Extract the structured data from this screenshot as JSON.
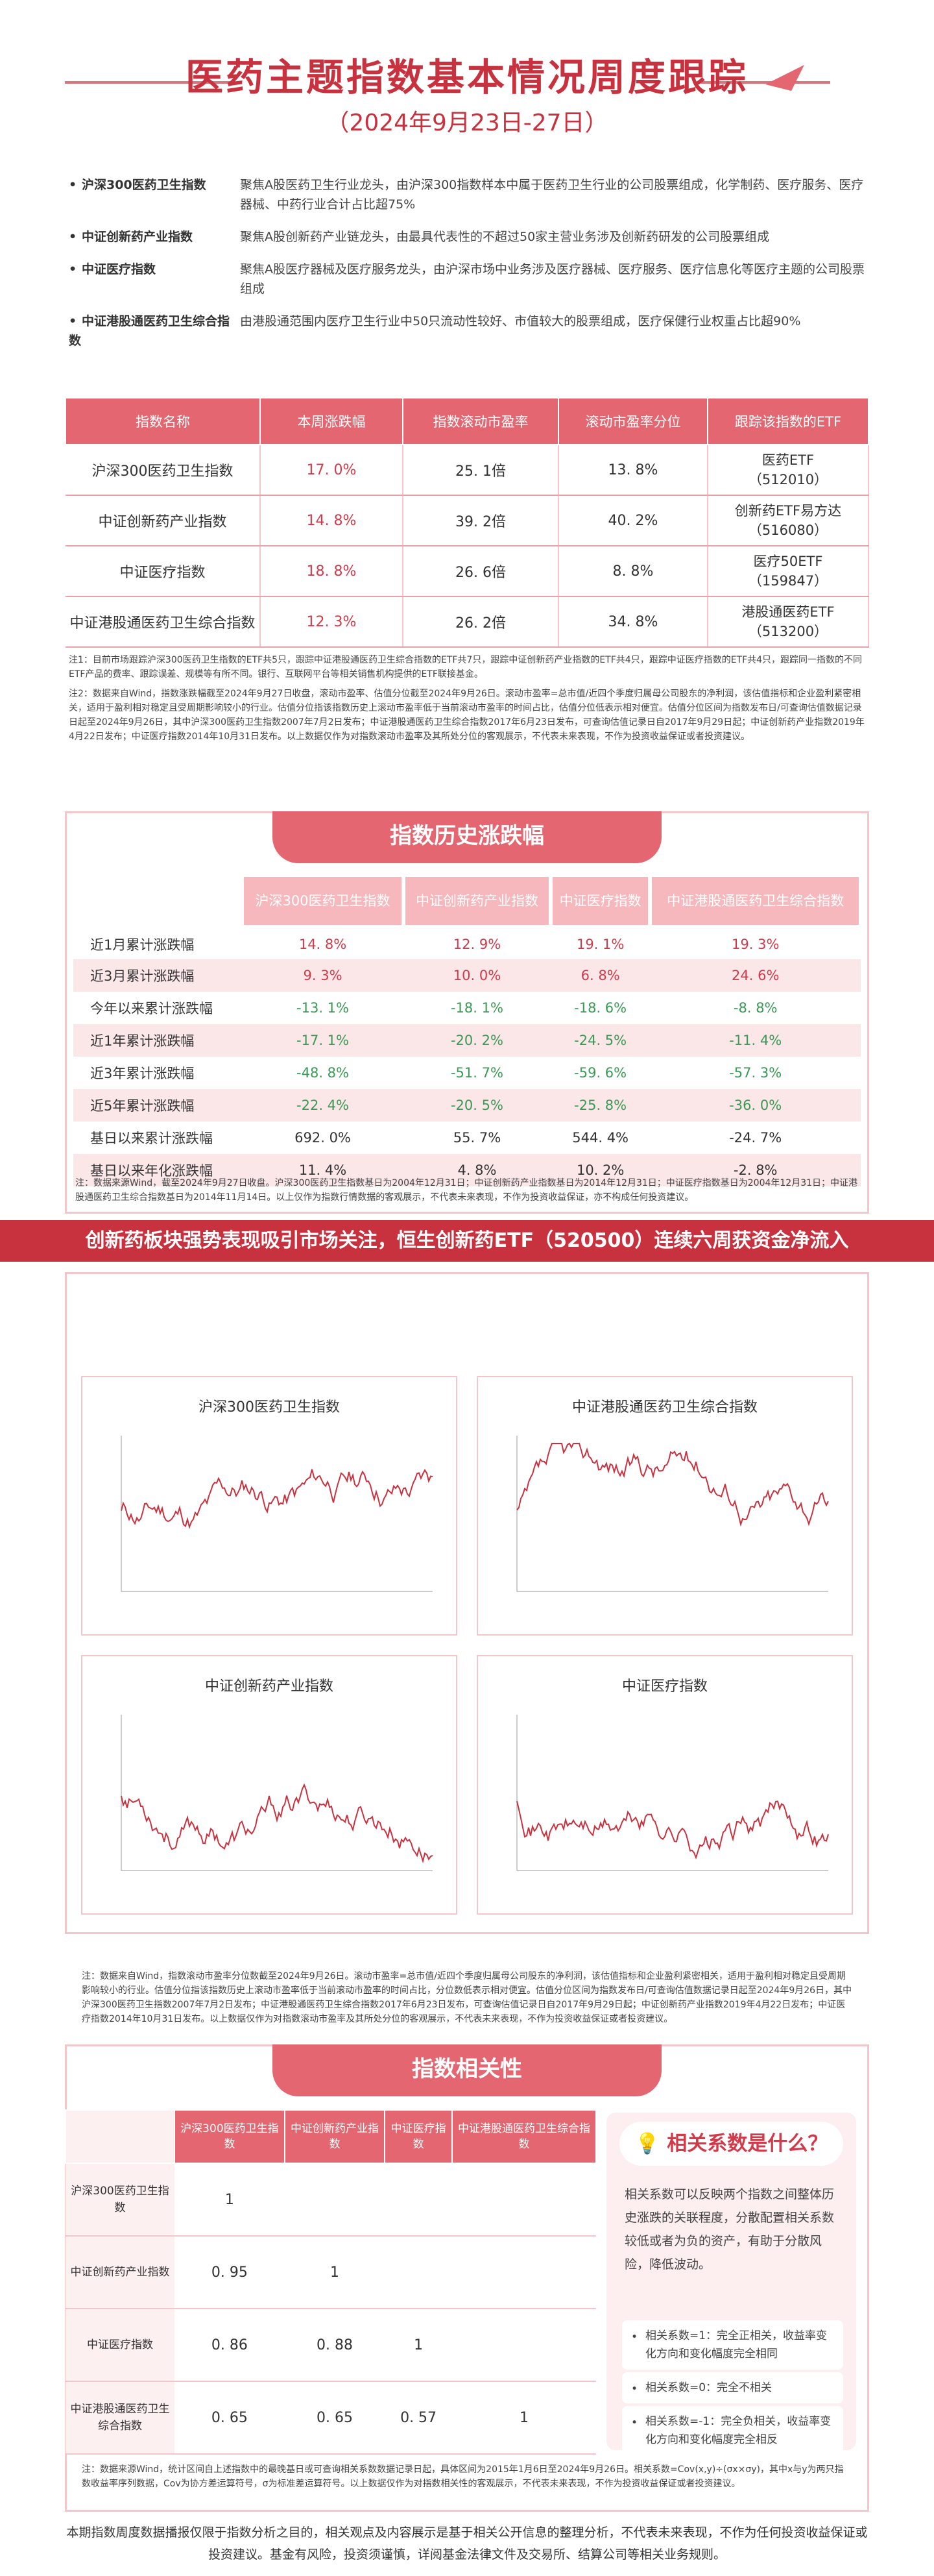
{
  "header": {
    "title": "医药主题指数基本情况周度跟踪",
    "subtitle": "（2024年9月23日-27日）"
  },
  "intro": [
    {
      "name": "沪深300医药卫生指数",
      "desc": "聚焦A股医药卫生行业龙头，由沪深300指数样本中属于医药卫生行业的公司股票组成，化学制药、医疗服务、医疗器械、中药行业合计占比超75%"
    },
    {
      "name": "中证创新药产业指数",
      "desc": "聚焦A股创新药产业链龙头，由最具代表性的不超过50家主营业务涉及创新药研发的公司股票组成"
    },
    {
      "name": "中证医疗指数",
      "desc": "聚焦A股医疗器械及医疗服务龙头，由沪深市场中业务涉及医疗器械、医疗服务、医疗信息化等医疗主题的公司股票组成"
    },
    {
      "name": "中证港股通医药卫生综合指数",
      "desc": "由港股通范围内医疗卫生行业中50只流动性较好、市值较大的股票组成，医疗保健行业权重占比超90%"
    }
  ],
  "table1": {
    "headers": [
      "指数名称",
      "本周涨跌幅",
      "指数滚动市盈率",
      "滚动市盈率分位",
      "跟踪该指数的ETF"
    ],
    "rows": [
      {
        "name": "沪深300医药卫生指数",
        "chg": "17. 0%",
        "pe": "25. 1倍",
        "pct": "13. 8%",
        "etf": "医药ETF",
        "code": "（512010）"
      },
      {
        "name": "中证创新药产业指数",
        "chg": "14. 8%",
        "pe": "39. 2倍",
        "pct": "40. 2%",
        "etf": "创新药ETF易方达",
        "code": "（516080）"
      },
      {
        "name": "中证医疗指数",
        "chg": "18. 8%",
        "pe": "26. 6倍",
        "pct": "8. 8%",
        "etf": "医疗50ETF",
        "code": "（159847）"
      },
      {
        "name": "中证港股通医药卫生综合指数",
        "chg": "12. 3%",
        "pe": "26. 2倍",
        "pct": "34. 8%",
        "etf": "港股通医药ETF",
        "code": "（513200）"
      }
    ],
    "note1": "注1：目前市场跟踪沪深300医药卫生指数的ETF共5只，跟踪中证港股通医药卫生综合指数的ETF共7只，跟踪中证创新药产业指数的ETF共4只，跟踪中证医疗指数的ETF共4只，跟踪同一指数的不同ETF产品的费率、跟踪误差、规模等有所不同。银行、互联网平台等相关销售机构提供的ETF联接基金。",
    "note2": "注2：数据来自Wind，指数涨跌幅截至2024年9月27日收盘，滚动市盈率、估值分位截至2024年9月26日。滚动市盈率=总市值/近四个季度归属母公司股东的净利润，该估值指标和企业盈利紧密相关，适用于盈利相对稳定且受周期影响较小的行业。估值分位指该指数历史上滚动市盈率低于当前滚动市盈率的时间占比，估值分位低表示相对便宜。估值分位区间为指数发布日/可查询估值数据记录日起至2024年9月26日，其中沪深300医药卫生指数2007年7月2日发布；中证港股通医药卫生综合指数2017年6月23日发布，可查询估值记录日自2017年9月29日起；中证创新药产业指数2019年4月22日发布；中证医疗指数2014年10月31日发布。以上数据仅作为对指数滚动市盈率及其所处分位的客观展示，不代表未来表现，不作为投资收益保证或者投资建议。"
  },
  "history": {
    "title": "指数历史涨跌幅",
    "headers": [
      "沪深300医药卫生指数",
      "中证创新药产业指数",
      "中证医疗指数",
      "中证港股通医药卫生综合指数"
    ],
    "rows": [
      {
        "label": "近1月累计涨跌幅",
        "v": [
          "14. 8%",
          "12. 9%",
          "19. 1%",
          "19. 3%"
        ]
      },
      {
        "label": "近3月累计涨跌幅",
        "v": [
          "9. 3%",
          "10. 0%",
          "6. 8%",
          "24. 6%"
        ]
      },
      {
        "label": "今年以来累计涨跌幅",
        "v": [
          "-13. 1%",
          "-18. 1%",
          "-18. 6%",
          "-8. 8%"
        ]
      },
      {
        "label": "近1年累计涨跌幅",
        "v": [
          "-17. 1%",
          "-20. 2%",
          "-24. 5%",
          "-11. 4%"
        ]
      },
      {
        "label": "近3年累计涨跌幅",
        "v": [
          "-48. 8%",
          "-51. 7%",
          "-59. 6%",
          "-57. 3%"
        ]
      },
      {
        "label": "近5年累计涨跌幅",
        "v": [
          "-22. 4%",
          "-20. 5%",
          "-25. 8%",
          "-36. 0%"
        ]
      },
      {
        "label": "基日以来累计涨跌幅",
        "v": [
          "692. 0%",
          "55. 7%",
          "544. 4%",
          "-24. 7%"
        ]
      },
      {
        "label": "基日以来年化涨跌幅",
        "v": [
          "11. 4%",
          "4. 8%",
          "10. 2%",
          "-2. 8%"
        ]
      }
    ],
    "note": "注：数据来源Wind，截至2024年9月27日收盘。沪深300医药卫生指数基日为2004年12月31日；中证创新药产业指数基日为2014年12月31日；中证医疗指数基日为2004年12月31日；中证港股通医药卫生综合指数基日为2014年11月14日。以上仅作为指数行情数据的客观展示，不代表未来表现，不作为投资收益保证，亦不构成任何投资建议。"
  },
  "banner": "创新药板块强势表现吸引市场关注，恒生创新药ETF（520500）连续六周获资金净流入",
  "charts": {
    "c1": "沪深300医药卫生指数",
    "c2": "中证港股通医药卫生综合指数",
    "c3": "中证创新药产业指数",
    "c4": "中证医疗指数",
    "note": "注：数据来自Wind，指数滚动市盈率分位数截至2024年9月26日。滚动市盈率=总市值/近四个季度归属母公司股东的净利润，该估值指标和企业盈利紧密相关，适用于盈利相对稳定且受周期影响较小的行业。估值分位指该指数历史上滚动市盈率低于当前滚动市盈率的时间占比，分位数低表示相对便宜。估值分位区间为指数发布日/可查询估值数据记录日起至2024年9月26日，其中沪深300医药卫生指数2007年7月2日发布；中证港股通医药卫生综合指数2017年6月23日发布，可查询估值记录日自2017年9月29日起；中证创新药产业指数2019年4月22日发布；中证医疗指数2014年10月31日发布。以上数据仅作为对指数滚动市盈率及其所处分位的客观展示，不代表未来表现，不作为投资收益保证或者投资建议。"
  },
  "correlation": {
    "title": "指数相关性",
    "headers": [
      "沪深300医药卫生指数",
      "中证创新药产业指数",
      "中证医疗指数",
      "中证港股通医药卫生综合指数"
    ],
    "rows": [
      {
        "label": "沪深300医药卫生指数",
        "v": [
          "1",
          "",
          "",
          ""
        ]
      },
      {
        "label": "中证创新药产业指数",
        "v": [
          "0. 95",
          "1",
          "",
          ""
        ]
      },
      {
        "label": "中证医疗指数",
        "v": [
          "0. 86",
          "0. 88",
          "1",
          ""
        ]
      },
      {
        "label": "中证港股通医药卫生综合指数",
        "v": [
          "0. 65",
          "0. 65",
          "0. 57",
          "1"
        ]
      }
    ],
    "side_title": "相关系数是什么？",
    "side_desc": "相关系数可以反映两个指数之间整体历史涨跌的关联程度，分散配置相关系数较低或者为负的资产，有助于分散风险，降低波动。",
    "side_items": [
      "相关系数=1：完全正相关，收益率变化方向和变化幅度完全相同",
      "相关系数=0：完全不相关",
      "相关系数=-1：完全负相关，收益率变化方向和变化幅度完全相反"
    ],
    "note": "注：数据来源Wind，统计区间自上述指数中的最晚基日或可查询相关系数数据记录日起，具体区间为2015年1月6日至2024年9月26日。相关系数=Cov(x,y)÷(σx×σy)，其中x与y为两只指数收益率序列数据，Cov为协方差运算符号，σ为标准差运算符号。以上数据仅作为对指数相关性的客观展示，不代表未来表现，不作为投资收益保证或者投资建议。"
  },
  "footer": "本期指数周度数据播报仅限于指数分析之目的，相关观点及内容展示是基于相关公开信息的整理分析，不代表未来表现，不作为任何投资收益保证或投资建议。基金有风险，投资须谨慎，详阅基金法律文件及交易所、结算公司等相关业务规则。",
  "colors": {
    "accent": "#e36670",
    "title": "#c8323f",
    "pale": "#fbe6e8"
  }
}
